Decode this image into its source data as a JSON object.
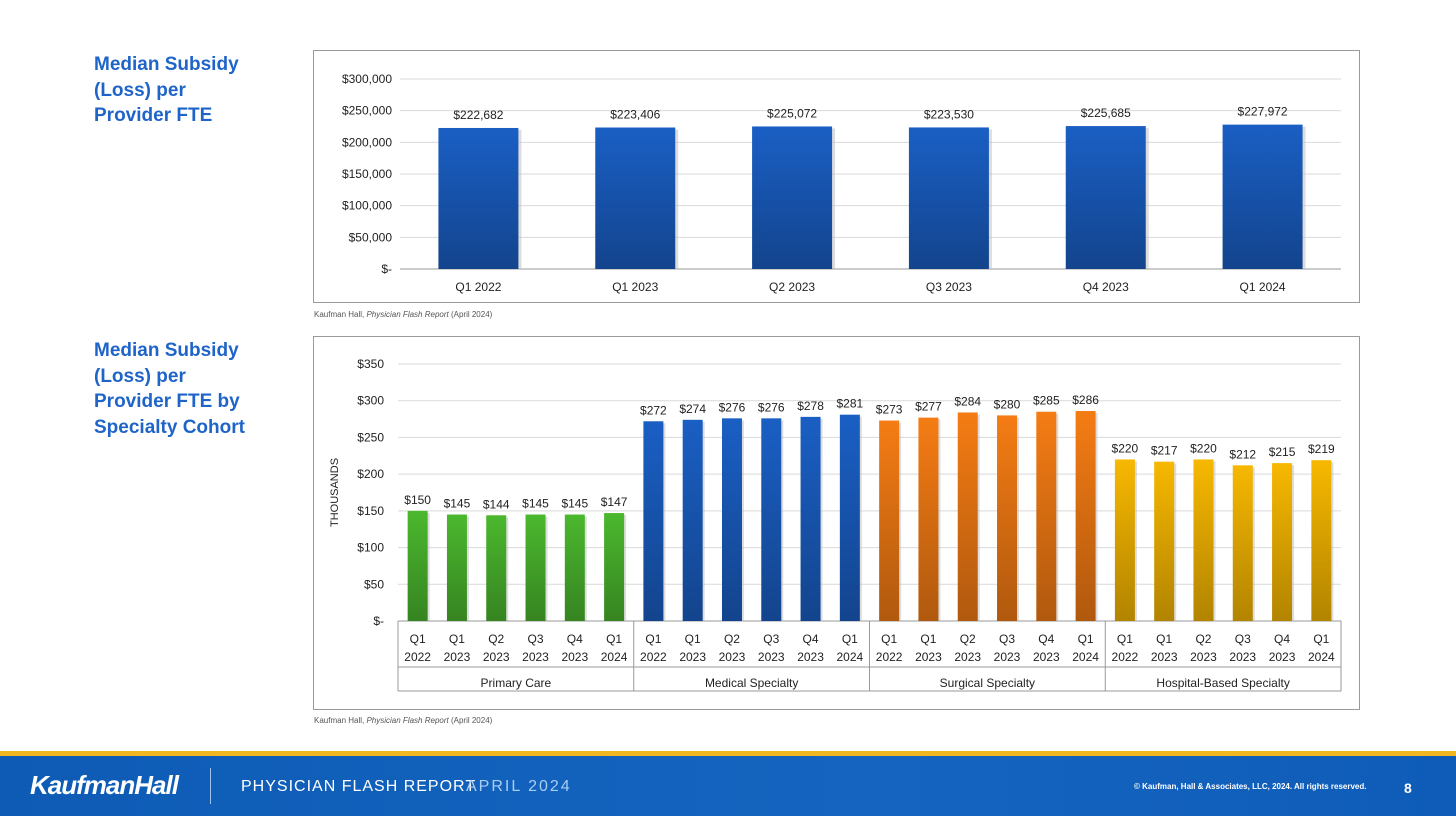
{
  "chart_data": [
    {
      "type": "bar",
      "title": "Median Subsidy (Loss) per Provider FTE",
      "categories": [
        "Q1 2022",
        "Q1 2023",
        "Q2 2023",
        "Q3 2023",
        "Q4 2023",
        "Q1 2024"
      ],
      "values": [
        222682,
        223406,
        225072,
        223530,
        225685,
        227972
      ],
      "data_labels": [
        "$222,682",
        "$223,406",
        "$225,072",
        "$223,530",
        "$225,685",
        "$227,972"
      ],
      "y_ticks": [
        "$-",
        "$50,000",
        "$100,000",
        "$150,000",
        "$200,000",
        "$250,000",
        "$300,000"
      ],
      "ylim": [
        0,
        300000
      ],
      "xlabel": "",
      "ylabel": "",
      "grid": true,
      "bar_color": "#1a5fc4"
    },
    {
      "type": "bar",
      "title": "Median Subsidy (Loss) per Provider FTE by Specialty Cohort",
      "ylabel": "THOUSANDS",
      "ylim": [
        0,
        350
      ],
      "y_ticks": [
        "$-",
        "$50",
        "$100",
        "$150",
        "$200",
        "$250",
        "$300",
        "$350"
      ],
      "grid": true,
      "groups": [
        {
          "name": "Primary Care",
          "color": "#4bb82e",
          "categories": [
            [
              "Q1",
              "2022"
            ],
            [
              "Q1",
              "2023"
            ],
            [
              "Q2",
              "2023"
            ],
            [
              "Q3",
              "2023"
            ],
            [
              "Q4",
              "2023"
            ],
            [
              "Q1",
              "2024"
            ]
          ],
          "values": [
            150,
            145,
            144,
            145,
            145,
            147
          ]
        },
        {
          "name": "Medical Specialty",
          "color": "#1a5fc4",
          "categories": [
            [
              "Q1",
              "2022"
            ],
            [
              "Q1",
              "2023"
            ],
            [
              "Q2",
              "2023"
            ],
            [
              "Q3",
              "2023"
            ],
            [
              "Q4",
              "2023"
            ],
            [
              "Q1",
              "2024"
            ]
          ],
          "values": [
            272,
            274,
            276,
            276,
            278,
            281
          ]
        },
        {
          "name": "Surgical Specialty",
          "color": "#f57c14",
          "categories": [
            [
              "Q1",
              "2022"
            ],
            [
              "Q1",
              "2023"
            ],
            [
              "Q2",
              "2023"
            ],
            [
              "Q3",
              "2023"
            ],
            [
              "Q4",
              "2023"
            ],
            [
              "Q1",
              "2024"
            ]
          ],
          "values": [
            273,
            277,
            284,
            280,
            285,
            286
          ]
        },
        {
          "name": "Hospital-Based Specialty",
          "color": "#f7b800",
          "categories": [
            [
              "Q1",
              "2022"
            ],
            [
              "Q1",
              "2023"
            ],
            [
              "Q2",
              "2023"
            ],
            [
              "Q3",
              "2023"
            ],
            [
              "Q4",
              "2023"
            ],
            [
              "Q1",
              "2024"
            ]
          ],
          "values": [
            220,
            217,
            220,
            212,
            215,
            219
          ]
        }
      ]
    }
  ],
  "titles": {
    "chart1": "Median Subsidy (Loss) per Provider FTE",
    "chart2": "Median Subsidy (Loss) per Provider FTE by Specialty Cohort"
  },
  "source": {
    "prefix": "Kaufman Hall, ",
    "italic": "Physician Flash Report",
    "suffix": " (April 2024)"
  },
  "footer": {
    "logo": "KaufmanHall",
    "report_name": "PHYSICIAN FLASH REPORT",
    "report_date": "APRIL 2024",
    "copyright": "© Kaufman, Hall & Associates, LLC, 2024. All rights reserved.",
    "page_number": "8"
  }
}
